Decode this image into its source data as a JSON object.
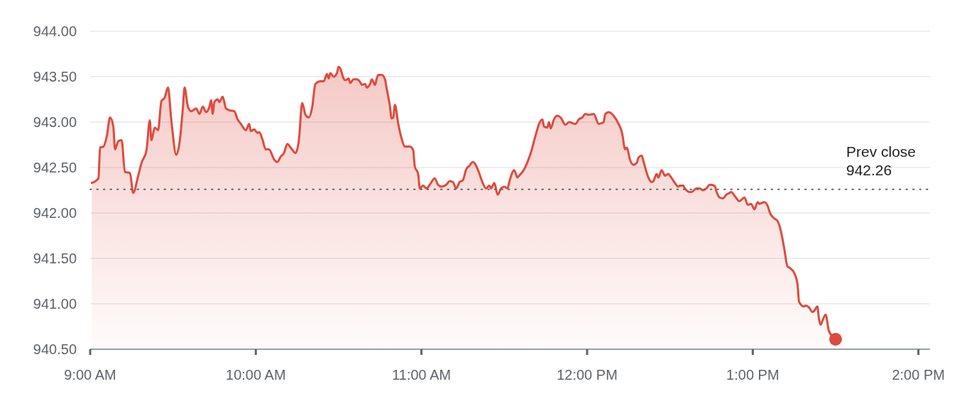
{
  "chart_data": {
    "type": "area",
    "xlim": [
      9,
      14.07
    ],
    "ylim": [
      940.5,
      944
    ],
    "xticks": [
      {
        "value": 9,
        "label": "9:00 AM"
      },
      {
        "value": 10,
        "label": "10:00 AM"
      },
      {
        "value": 11,
        "label": "11:00 AM"
      },
      {
        "value": 12,
        "label": "12:00 PM"
      },
      {
        "value": 13,
        "label": "1:00 PM"
      },
      {
        "value": 14,
        "label": "2:00 PM"
      }
    ],
    "yticks": [
      {
        "value": 940.5,
        "label": "940.50"
      },
      {
        "value": 941,
        "label": "941.00"
      },
      {
        "value": 941.5,
        "label": "941.50"
      },
      {
        "value": 942,
        "label": "942.00"
      },
      {
        "value": 942.5,
        "label": "942.50"
      },
      {
        "value": 943,
        "label": "943.00"
      },
      {
        "value": 943.5,
        "label": "943.50"
      },
      {
        "value": 944,
        "label": "944.00"
      }
    ],
    "grid": "y",
    "ref_lines": [
      {
        "axis": "y",
        "value": 942.26,
        "label": "Prev close 942.26",
        "line_style": "dotted",
        "color": "#5f6368"
      }
    ],
    "series": [
      {
        "color": "#dd4b3e",
        "x": [
          9.01,
          9.05,
          9.06,
          9.08,
          9.1,
          9.12,
          9.14,
          9.15,
          9.17,
          9.19,
          9.21,
          9.24,
          9.26,
          9.29,
          9.31,
          9.34,
          9.36,
          9.37,
          9.39,
          9.41,
          9.43,
          9.45,
          9.47,
          9.49,
          9.52,
          9.54,
          9.56,
          9.57,
          9.59,
          9.61,
          9.64,
          9.66,
          9.68,
          9.7,
          9.72,
          9.73,
          9.74,
          9.75,
          9.77,
          9.78,
          9.8,
          9.82,
          9.84,
          9.87,
          9.89,
          9.91,
          9.94,
          9.96,
          9.97,
          9.99,
          10.01,
          10.02,
          10.04,
          10.06,
          10.08,
          10.11,
          10.13,
          10.15,
          10.17,
          10.19,
          10.21,
          10.24,
          10.26,
          10.28,
          10.3,
          10.32,
          10.34,
          10.36,
          10.39,
          10.41,
          10.43,
          10.44,
          10.45,
          10.47,
          10.49,
          10.5,
          10.51,
          10.53,
          10.54,
          10.56,
          10.57,
          10.59,
          10.61,
          10.63,
          10.64,
          10.66,
          10.67,
          10.69,
          10.7,
          10.72,
          10.73,
          10.74,
          10.76,
          10.78,
          10.79,
          10.81,
          10.82,
          10.83,
          10.84,
          10.86,
          10.88,
          10.9,
          10.93,
          10.95,
          10.96,
          10.98,
          10.99,
          11.01,
          11.03,
          11.05,
          11.08,
          11.1,
          11.12,
          11.15,
          11.17,
          11.19,
          11.21,
          11.23,
          11.25,
          11.27,
          11.29,
          11.31,
          11.33,
          11.35,
          11.37,
          11.39,
          11.41,
          11.42,
          11.44,
          11.46,
          11.48,
          11.5,
          11.52,
          11.53,
          11.55,
          11.56,
          11.58,
          11.59,
          11.62,
          11.64,
          11.66,
          11.69,
          11.71,
          11.73,
          11.74,
          11.76,
          11.77,
          11.78,
          11.8,
          11.82,
          11.84,
          11.87,
          11.89,
          11.93,
          11.95,
          11.97,
          11.99,
          12.01,
          12.04,
          12.07,
          12.1,
          12.11,
          12.13,
          12.16,
          12.19,
          12.21,
          12.23,
          12.24,
          12.26,
          12.28,
          12.3,
          12.31,
          12.33,
          12.34,
          12.37,
          12.39,
          12.4,
          12.42,
          12.43,
          12.45,
          12.47,
          12.49,
          12.5,
          12.53,
          12.55,
          12.56,
          12.58,
          12.59,
          12.62,
          12.63,
          12.66,
          12.68,
          12.7,
          12.72,
          12.74,
          12.77,
          12.78,
          12.8,
          12.82,
          12.84,
          12.86,
          12.87,
          12.89,
          12.92,
          12.95,
          12.97,
          12.99,
          13.01,
          13.03,
          13.04,
          13.07,
          13.09,
          13.1,
          13.11,
          13.13,
          13.15,
          13.17,
          13.19,
          13.21,
          13.22,
          13.25,
          13.27,
          13.28,
          13.31,
          13.32,
          13.34,
          13.36,
          13.37,
          13.39,
          13.4,
          13.41,
          13.42,
          13.44,
          13.46,
          13.5
        ],
        "values": [
          942.33,
          942.38,
          942.72,
          942.73,
          942.84,
          943.05,
          942.95,
          942.7,
          942.79,
          942.8,
          942.45,
          942.44,
          942.22,
          942.41,
          942.55,
          942.69,
          943.02,
          942.8,
          942.94,
          942.91,
          943.23,
          943.27,
          943.38,
          943.02,
          942.64,
          942.78,
          943.16,
          943.38,
          943.17,
          943.12,
          943.15,
          943.09,
          943.17,
          943.11,
          943.17,
          943.24,
          943.09,
          943.22,
          943.25,
          943.22,
          943.28,
          943.15,
          943.13,
          943.12,
          943.03,
          942.98,
          942.91,
          942.98,
          942.9,
          942.92,
          942.88,
          942.89,
          942.81,
          942.7,
          942.7,
          942.59,
          942.56,
          942.62,
          942.66,
          942.76,
          942.72,
          942.66,
          942.8,
          943.21,
          943.08,
          943.05,
          943.16,
          943.42,
          943.45,
          943.45,
          943.53,
          943.48,
          943.54,
          943.5,
          943.54,
          943.61,
          943.59,
          943.48,
          943.46,
          943.48,
          943.43,
          943.47,
          943.47,
          943.44,
          943.41,
          943.42,
          943.38,
          943.42,
          943.47,
          943.41,
          943.48,
          943.52,
          943.52,
          943.47,
          943.37,
          943.17,
          943.04,
          943.05,
          943.19,
          942.98,
          942.82,
          942.73,
          942.73,
          942.69,
          942.51,
          942.43,
          942.27,
          942.3,
          942.27,
          942.31,
          942.38,
          942.31,
          942.29,
          942.31,
          942.35,
          942.34,
          942.27,
          942.34,
          942.36,
          942.48,
          942.52,
          942.56,
          942.52,
          942.43,
          942.33,
          942.27,
          942.3,
          942.27,
          942.33,
          942.2,
          942.27,
          942.29,
          942.27,
          942.34,
          942.45,
          942.47,
          942.39,
          942.41,
          942.48,
          942.56,
          942.66,
          942.86,
          942.98,
          943.03,
          942.95,
          942.94,
          943.0,
          942.93,
          943.03,
          943.07,
          943.05,
          942.97,
          943.0,
          942.98,
          943.03,
          943.05,
          943.09,
          943.08,
          943.09,
          942.98,
          943.0,
          943.09,
          943.11,
          943.07,
          942.98,
          942.89,
          942.7,
          942.72,
          942.58,
          942.53,
          942.55,
          942.61,
          942.63,
          942.57,
          942.39,
          942.34,
          942.35,
          942.43,
          942.39,
          942.47,
          942.41,
          942.43,
          942.41,
          942.33,
          942.29,
          942.3,
          942.3,
          942.27,
          942.23,
          942.23,
          942.27,
          942.27,
          942.25,
          942.27,
          942.31,
          942.3,
          942.24,
          942.17,
          942.16,
          942.2,
          942.22,
          942.23,
          942.19,
          942.13,
          942.17,
          942.09,
          942.1,
          942.04,
          942.12,
          942.1,
          942.12,
          942.08,
          942.02,
          941.98,
          941.94,
          941.91,
          941.8,
          941.61,
          941.41,
          941.4,
          941.34,
          941.22,
          941.02,
          940.97,
          940.98,
          940.96,
          940.91,
          940.92,
          940.97,
          940.83,
          940.77,
          940.81,
          940.88,
          940.7,
          940.61
        ]
      }
    ]
  }
}
